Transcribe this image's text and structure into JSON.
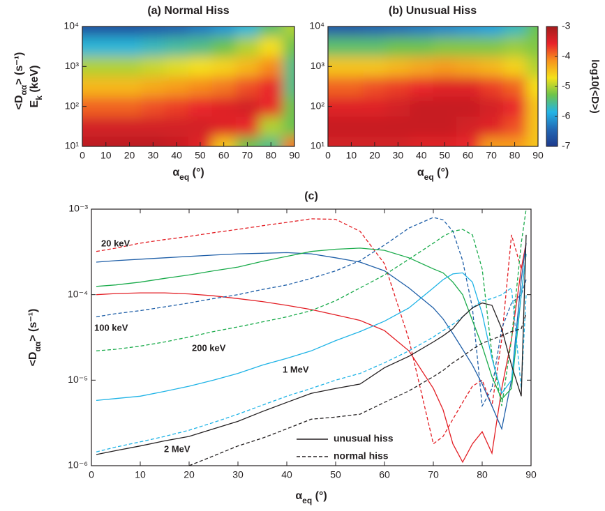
{
  "chart_data": [
    {
      "type": "heatmap",
      "title": "(a) Normal Hiss",
      "xlabel": [
        "α",
        "eq",
        " (°)"
      ],
      "ylabel": [
        "E",
        "k",
        " (keV)"
      ],
      "ylabel_outer": [
        "<D",
        "αα",
        "> (s⁻¹)"
      ],
      "x": [
        0,
        10,
        20,
        30,
        40,
        50,
        60,
        70,
        80,
        90
      ],
      "y": [
        10,
        31.6,
        100,
        316,
        1000,
        3162,
        10000
      ],
      "z": [
        [
          -3.2,
          -3.2,
          -3.2,
          -3.2,
          -3.3,
          -3.5,
          -4.5,
          -5.3,
          -5.5,
          -4.0
        ],
        [
          -3.4,
          -3.4,
          -3.4,
          -3.4,
          -3.4,
          -3.4,
          -3.5,
          -3.6,
          -5.0,
          -5.3
        ],
        [
          -3.9,
          -3.9,
          -3.9,
          -3.8,
          -3.7,
          -3.6,
          -3.5,
          -3.4,
          -3.6,
          -5.3
        ],
        [
          -4.4,
          -4.4,
          -4.4,
          -4.3,
          -4.2,
          -4.1,
          -4.0,
          -3.8,
          -3.6,
          -5.5
        ],
        [
          -5.0,
          -5.0,
          -5.0,
          -4.9,
          -4.8,
          -4.7,
          -4.6,
          -4.4,
          -4.1,
          -5.5
        ],
        [
          -5.8,
          -5.8,
          -5.8,
          -5.7,
          -5.6,
          -5.5,
          -5.3,
          -5.0,
          -4.7,
          -5.3
        ],
        [
          -6.7,
          -6.7,
          -6.7,
          -6.6,
          -6.5,
          -6.3,
          -6.1,
          -5.8,
          -5.4,
          -5.0
        ]
      ],
      "xlim": [
        0,
        90
      ],
      "xticks": [
        0,
        10,
        20,
        30,
        40,
        50,
        60,
        70,
        80,
        90
      ],
      "ylim": [
        10,
        10000
      ],
      "ylog": true,
      "yticks": [
        {
          "value": 10,
          "label": "10¹"
        },
        {
          "value": 100,
          "label": "10²"
        },
        {
          "value": 1000,
          "label": "10³"
        },
        {
          "value": 10000,
          "label": "10⁴"
        }
      ]
    },
    {
      "type": "heatmap",
      "title": "(b) Unusual Hiss",
      "xlabel": [
        "α",
        "eq",
        " (°)"
      ],
      "x": [
        0,
        10,
        20,
        30,
        40,
        50,
        60,
        70,
        80,
        90
      ],
      "y": [
        10,
        31.6,
        100,
        316,
        1000,
        3162,
        10000
      ],
      "z": [
        [
          -3.4,
          -3.4,
          -3.4,
          -3.4,
          -3.5,
          -3.5,
          -3.6,
          -4.2,
          -4.2,
          -4.5
        ],
        [
          -3.3,
          -3.3,
          -3.3,
          -3.3,
          -3.3,
          -3.3,
          -3.4,
          -3.5,
          -3.8,
          -4.5
        ],
        [
          -3.5,
          -3.5,
          -3.5,
          -3.4,
          -3.3,
          -3.3,
          -3.3,
          -3.4,
          -3.6,
          -4.5
        ],
        [
          -3.9,
          -3.9,
          -3.8,
          -3.7,
          -3.6,
          -3.5,
          -3.5,
          -3.7,
          -3.9,
          -4.7
        ],
        [
          -4.5,
          -4.5,
          -4.5,
          -4.4,
          -4.3,
          -4.2,
          -4.3,
          -4.4,
          -4.6,
          -5.0
        ],
        [
          -5.4,
          -5.4,
          -5.4,
          -5.3,
          -5.3,
          -5.2,
          -5.2,
          -5.2,
          -5.1,
          -5.2
        ],
        [
          -6.6,
          -6.6,
          -6.5,
          -6.4,
          -6.3,
          -6.2,
          -6.1,
          -6.0,
          -5.7,
          -5.3
        ]
      ],
      "xlim": [
        0,
        90
      ],
      "xticks": [
        0,
        10,
        20,
        30,
        40,
        50,
        60,
        70,
        80,
        90
      ],
      "ylim": [
        10,
        10000
      ],
      "ylog": true,
      "yticks": [
        {
          "value": 10,
          "label": "10¹"
        },
        {
          "value": 100,
          "label": "10²"
        },
        {
          "value": 1000,
          "label": "10³"
        },
        {
          "value": 10000,
          "label": "10⁴"
        }
      ],
      "colorbar": {
        "label": "log10(<D>)",
        "lim": [
          -7,
          -3
        ],
        "ticks": [
          -7,
          -6,
          -5,
          -4,
          -3
        ],
        "colors": [
          "#1d3a8c",
          "#2368b4",
          "#23b4e6",
          "#6cc34c",
          "#f4e11a",
          "#f7941d",
          "#e8222a",
          "#a31c1c"
        ]
      }
    },
    {
      "type": "line",
      "title": "(c)",
      "xlabel": [
        "α",
        "eq",
        " (°)"
      ],
      "ylabel": [
        "<D",
        "αα",
        "> (s⁻¹)"
      ],
      "x": [
        1,
        5,
        10,
        15,
        20,
        25,
        30,
        35,
        40,
        45,
        50,
        55,
        60,
        65,
        70,
        72,
        74,
        76,
        78,
        80,
        82,
        84,
        86,
        88,
        89
      ],
      "xlim": [
        0,
        90
      ],
      "xticks": [
        0,
        10,
        20,
        30,
        40,
        50,
        60,
        70,
        80,
        90
      ],
      "ylim": [
        1e-06,
        0.001
      ],
      "ylog": true,
      "yticks": [
        {
          "value": 1e-06,
          "label": "10⁻⁶"
        },
        {
          "value": 1e-05,
          "label": "10⁻⁵"
        },
        {
          "value": 0.0001,
          "label": "10⁻⁴"
        },
        {
          "value": 0.001,
          "label": "10⁻³"
        }
      ],
      "legend": [
        {
          "label": "unusual hiss",
          "dash": "solid"
        },
        {
          "label": "normal hiss",
          "dash": "dashed"
        }
      ],
      "series": [
        {
          "name": "20 keV",
          "color": "#e31e24",
          "unusual": [
            0.0001,
            0.000103,
            0.000105,
            0.000105,
            0.000102,
            9.7e-05,
            9e-05,
            8.3e-05,
            7.5e-05,
            6.7e-05,
            5.8e-05,
            5e-05,
            3.8e-05,
            2.2e-05,
            8e-06,
            4.5e-06,
            1.8e-06,
            1.1e-06,
            1.8e-06,
            2.5e-06,
            1.4e-06,
            8e-06,
            3e-05,
            0.0002,
            0.0004
          ],
          "normal": [
            0.00032,
            0.00035,
            0.0004,
            0.00044,
            0.00048,
            0.00053,
            0.00058,
            0.00064,
            0.0007,
            0.00077,
            0.00076,
            0.00055,
            0.00023,
            3e-05,
            1.8e-06,
            2.2e-06,
            3.5e-06,
            5.5e-06,
            8.5e-06,
            1e-05,
            5e-06,
            3e-05,
            0.0005,
            0.0002,
            0.0004
          ]
        },
        {
          "name": "100 keV",
          "color": "#1f5fa8",
          "unusual": [
            0.00024,
            0.00025,
            0.00026,
            0.00027,
            0.00028,
            0.00029,
            0.0003,
            0.000305,
            0.00031,
            0.0003,
            0.00027,
            0.00024,
            0.00019,
            0.00012,
            7e-05,
            5.2e-05,
            3.5e-05,
            2.3e-05,
            1.5e-05,
            9e-06,
            5e-06,
            2.7e-06,
            1e-05,
            0.00015,
            0.0004
          ],
          "normal": [
            5.5e-05,
            6e-05,
            6.5e-05,
            7.2e-05,
            8e-05,
            9e-05,
            0.0001,
            0.000115,
            0.00013,
            0.000155,
            0.00019,
            0.00025,
            0.00038,
            0.0006,
            0.0008,
            0.00075,
            0.00055,
            0.00025,
            7e-05,
            5e-06,
            8e-06,
            4e-05,
            8e-05,
            0.0001,
            0.00015
          ]
        },
        {
          "name": "200 keV",
          "color": "#1aab4b",
          "unusual": [
            0.000125,
            0.00013,
            0.00014,
            0.000155,
            0.00017,
            0.00019,
            0.00021,
            0.000245,
            0.00028,
            0.00032,
            0.00034,
            0.00035,
            0.00033,
            0.00027,
            0.0002,
            0.00018,
            0.00014,
            0.0001,
            5e-05,
            2.5e-05,
            1.1e-05,
            6e-06,
            8e-06,
            0.0001,
            0.0003
          ],
          "normal": [
            2.2e-05,
            2.3e-05,
            2.5e-05,
            2.8e-05,
            3.2e-05,
            3.7e-05,
            4.2e-05,
            4.8e-05,
            5.5e-05,
            6.5e-05,
            8.5e-05,
            0.00012,
            0.00017,
            0.00026,
            0.0004,
            0.00048,
            0.00055,
            0.00058,
            0.0005,
            0.0002,
            2e-05,
            5e-06,
            3e-05,
            0.0004,
            0.001
          ]
        },
        {
          "name": "1 MeV",
          "color": "#1eb3e6",
          "unusual": [
            5.8e-06,
            6.1e-06,
            6.5e-06,
            7.4e-06,
            8.5e-06,
            1e-05,
            1.2e-05,
            1.5e-05,
            1.8e-05,
            2.2e-05,
            2.9e-05,
            3.7e-05,
            4.9e-05,
            7e-05,
            0.00012,
            0.00015,
            0.000175,
            0.00018,
            0.00014,
            6e-05,
            1.8e-05,
            7e-06,
            1e-05,
            0.0001,
            0.0003
          ],
          "normal": [
            1.45e-06,
            1.65e-06,
            1.9e-06,
            2.2e-06,
            2.6e-06,
            3.2e-06,
            4e-06,
            5.1e-06,
            6.5e-06,
            8e-06,
            1e-05,
            1.2e-05,
            1.6e-05,
            2.2e-05,
            3.2e-05,
            3.8e-05,
            4.5e-05,
            5.5e-05,
            7e-05,
            8.5e-05,
            9e-05,
            0.0001,
            0.00012,
            8e-06,
            0.0001
          ]
        },
        {
          "name": "2 MeV",
          "color": "#231f20",
          "unusual": [
            1.35e-06,
            1.5e-06,
            1.7e-06,
            1.95e-06,
            2.2e-06,
            2.7e-06,
            3.3e-06,
            4.3e-06,
            5.5e-06,
            7e-06,
            8e-06,
            9e-06,
            1.4e-05,
            1.9e-05,
            2.8e-05,
            3.3e-05,
            4e-05,
            5.5e-05,
            7e-05,
            8e-05,
            7.5e-05,
            4e-05,
            1.5e-05,
            6.5e-06,
            0.0005
          ],
          "normal": [
            null,
            null,
            null,
            null,
            1e-06,
            1.3e-06,
            1.7e-06,
            2.1e-06,
            2.7e-06,
            3.5e-06,
            3.7e-06,
            4e-06,
            5.5e-06,
            7.5e-06,
            1.1e-05,
            1.3e-05,
            1.6e-05,
            1.9e-05,
            2.3e-05,
            2.7e-05,
            3e-05,
            3.3e-05,
            3.7e-05,
            4e-05,
            6e-05
          ]
        }
      ]
    }
  ]
}
